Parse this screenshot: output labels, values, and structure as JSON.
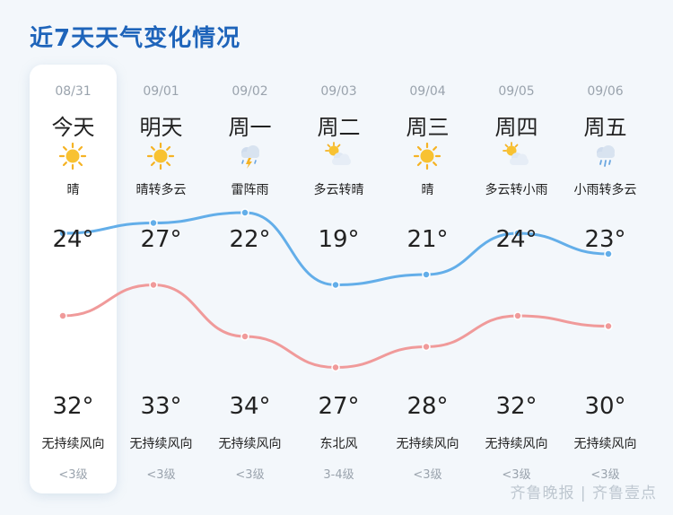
{
  "title": "近7天天气变化情况",
  "watermark": "齐鲁晚报 | 齐鲁壹点",
  "days": [
    {
      "date": "08/31",
      "name": "今天",
      "icon": "sun-icon",
      "cond": "晴",
      "high": "24°",
      "low": "32°",
      "wind": "无持续风向",
      "level": "<3级"
    },
    {
      "date": "09/01",
      "name": "明天",
      "icon": "sun-icon",
      "cond": "晴转多云",
      "high": "27°",
      "low": "33°",
      "wind": "无持续风向",
      "level": "<3级"
    },
    {
      "date": "09/02",
      "name": "周一",
      "icon": "thunderstorm-icon",
      "cond": "雷阵雨",
      "high": "22°",
      "low": "34°",
      "wind": "无持续风向",
      "level": "<3级"
    },
    {
      "date": "09/03",
      "name": "周二",
      "icon": "partly-cloudy-icon",
      "cond": "多云转晴",
      "high": "19°",
      "low": "27°",
      "wind": "东北风",
      "level": "3-4级"
    },
    {
      "date": "09/04",
      "name": "周三",
      "icon": "sun-icon",
      "cond": "晴",
      "high": "21°",
      "low": "28°",
      "wind": "无持续风向",
      "level": "<3级"
    },
    {
      "date": "09/05",
      "name": "周四",
      "icon": "partly-cloudy-icon",
      "cond": "多云转小雨",
      "high": "24°",
      "low": "32°",
      "wind": "无持续风向",
      "level": "<3级"
    },
    {
      "date": "09/06",
      "name": "周五",
      "icon": "light-rain-icon",
      "cond": "小雨转多云",
      "high": "23°",
      "low": "30°",
      "wind": "无持续风向",
      "level": "<3级"
    }
  ],
  "chart_data": {
    "type": "line",
    "x": [
      "08/31",
      "09/01",
      "09/02",
      "09/03",
      "09/04",
      "09/05",
      "09/06"
    ],
    "series": [
      {
        "values": [
          24,
          27,
          22,
          19,
          21,
          24,
          23
        ],
        "color": "#f09a9a"
      },
      {
        "values": [
          32,
          33,
          34,
          27,
          28,
          32,
          30
        ],
        "color": "#63aee9"
      }
    ]
  }
}
